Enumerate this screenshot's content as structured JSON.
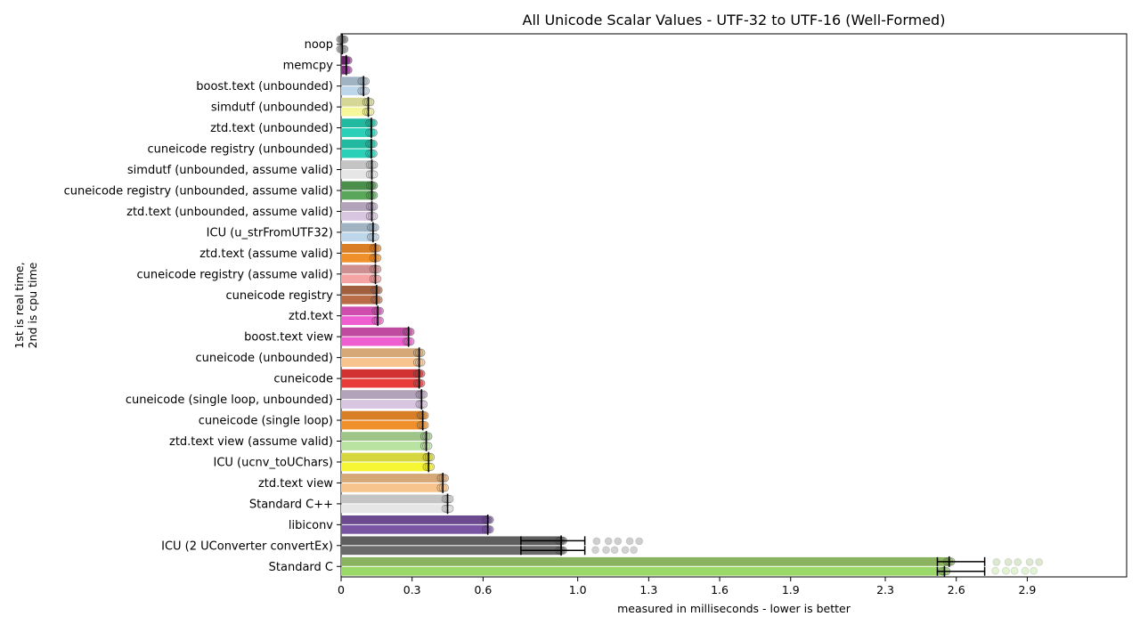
{
  "chart_data": {
    "type": "bar",
    "orientation": "horizontal",
    "title": "All Unicode Scalar Values - UTF-32 to UTF-16 (Well-Formed)",
    "xlabel": "measured in milliseconds - lower is better",
    "ylabel_lines": [
      "1st is real time,",
      "2nd is cpu time"
    ],
    "xlim": [
      0,
      3.32
    ],
    "xticks": [
      0,
      0.3,
      0.6,
      1.0,
      1.3,
      1.6,
      1.9,
      2.3,
      2.6,
      2.9
    ],
    "xtick_labels": [
      "0",
      "0.3",
      "0.6",
      "1.0",
      "1.3",
      "1.6",
      "1.9",
      "2.3",
      "2.6",
      "2.9"
    ],
    "grid": false,
    "series": [
      {
        "name": "real time"
      },
      {
        "name": "cpu time"
      }
    ],
    "categories": [
      {
        "label": "noop",
        "real": 0.005,
        "cpu": 0.005,
        "colors": [
          "#707070",
          "#8a8a8a"
        ]
      },
      {
        "label": "memcpy",
        "real": 0.022,
        "cpu": 0.022,
        "colors": [
          "#7b1f7b",
          "#9b2f9b"
        ]
      },
      {
        "label": "boost.text (unbounded)",
        "real": 0.095,
        "cpu": 0.095,
        "colors": [
          "#9fb3c3",
          "#bdd6ea"
        ]
      },
      {
        "label": "simdutf (unbounded)",
        "real": 0.115,
        "cpu": 0.115,
        "colors": [
          "#d6d796",
          "#f6f69a"
        ]
      },
      {
        "label": "ztd.text (unbounded)",
        "real": 0.128,
        "cpu": 0.128,
        "colors": [
          "#21b9a0",
          "#2ad1b8"
        ]
      },
      {
        "label": "cuneicode registry (unbounded)",
        "real": 0.128,
        "cpu": 0.128,
        "colors": [
          "#21b9a0",
          "#2ad1b8"
        ]
      },
      {
        "label": "simdutf (unbounded, assume valid)",
        "real": 0.13,
        "cpu": 0.13,
        "colors": [
          "#c4c4c4",
          "#e6e6e6"
        ]
      },
      {
        "label": "cuneicode registry (unbounded, assume valid)",
        "real": 0.13,
        "cpu": 0.13,
        "colors": [
          "#4c8f4c",
          "#5aa65a"
        ]
      },
      {
        "label": "ztd.text (unbounded, assume valid)",
        "real": 0.13,
        "cpu": 0.13,
        "colors": [
          "#b3a3ba",
          "#d8c5df"
        ]
      },
      {
        "label": "ICU (u_strFromUTF32)",
        "real": 0.135,
        "cpu": 0.135,
        "colors": [
          "#9fb3c3",
          "#bdd6ea"
        ]
      },
      {
        "label": "ztd.text (assume valid)",
        "real": 0.145,
        "cpu": 0.145,
        "colors": [
          "#d87e26",
          "#f0902b"
        ]
      },
      {
        "label": "cuneicode registry (assume valid)",
        "real": 0.145,
        "cpu": 0.145,
        "colors": [
          "#cd8f8f",
          "#f6a3a3"
        ]
      },
      {
        "label": "cuneicode registry",
        "real": 0.15,
        "cpu": 0.15,
        "colors": [
          "#a15f3e",
          "#b96c45"
        ]
      },
      {
        "label": "ztd.text",
        "real": 0.155,
        "cpu": 0.155,
        "colors": [
          "#d04db0",
          "#ef5ed1"
        ]
      },
      {
        "label": "boost.text view",
        "real": 0.285,
        "cpu": 0.285,
        "colors": [
          "#c04a9f",
          "#ef5ed1"
        ]
      },
      {
        "label": "cuneicode (unbounded)",
        "real": 0.33,
        "cpu": 0.33,
        "colors": [
          "#d6a878",
          "#f8c48e"
        ]
      },
      {
        "label": "cuneicode",
        "real": 0.33,
        "cpu": 0.33,
        "colors": [
          "#d23232",
          "#ea3b3b"
        ]
      },
      {
        "label": "cuneicode (single loop, unbounded)",
        "real": 0.34,
        "cpu": 0.34,
        "colors": [
          "#b3a3ba",
          "#d8c5df"
        ]
      },
      {
        "label": "cuneicode (single loop)",
        "real": 0.345,
        "cpu": 0.345,
        "colors": [
          "#d87e26",
          "#f0902b"
        ]
      },
      {
        "label": "ztd.text view (assume valid)",
        "real": 0.36,
        "cpu": 0.36,
        "colors": [
          "#9ec488",
          "#b9e3a1"
        ]
      },
      {
        "label": "ICU (ucnv_toUChars)",
        "real": 0.37,
        "cpu": 0.37,
        "colors": [
          "#d6d63e",
          "#f6f634"
        ]
      },
      {
        "label": "ztd.text view",
        "real": 0.43,
        "cpu": 0.43,
        "colors": [
          "#d6a878",
          "#f8c48e"
        ]
      },
      {
        "label": "Standard C++",
        "real": 0.45,
        "cpu": 0.45,
        "colors": [
          "#c4c4c4",
          "#e6e6e6"
        ]
      },
      {
        "label": "libiconv",
        "real": 0.62,
        "cpu": 0.62,
        "colors": [
          "#6b4a8f",
          "#7a55a3"
        ]
      },
      {
        "label": "ICU (2 UConverter convertEx)",
        "real": 0.93,
        "cpu": 0.93,
        "colors": [
          "#5e5e5e",
          "#6a6a6a"
        ],
        "err_low": 0.76,
        "err_high": 1.03
      },
      {
        "label": "Standard C",
        "real": 2.57,
        "cpu": 2.55,
        "colors": [
          "#8ab35f",
          "#9ad86a"
        ],
        "err_low": 2.52,
        "err_high": 2.72
      }
    ]
  }
}
